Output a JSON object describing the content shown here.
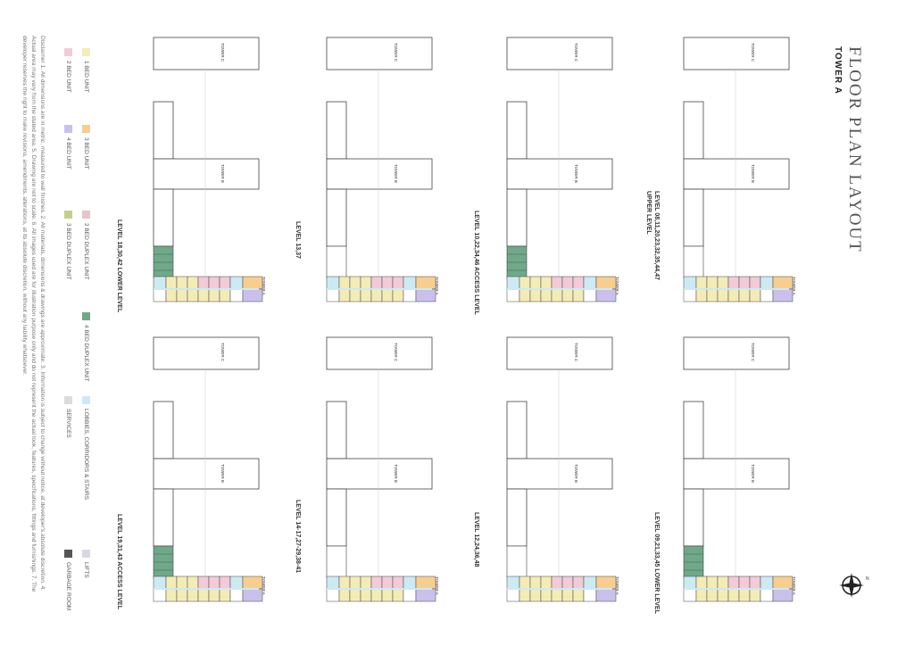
{
  "header": {
    "title": "FLOOR PLAN LAYOUT",
    "subtitle": "TOWER A"
  },
  "towers": {
    "a": "TOWER A",
    "b": "TOWER B",
    "c": "TOWER C"
  },
  "unit_label": "AeT",
  "plans": [
    {
      "level": "LEVEL 08,11,20,23,32,35,44,47 UPPER LEVEL"
    },
    {
      "level": "LEVEL 09,21,33,45 LOWER LEVEL"
    },
    {
      "level": "LEVEL 10,22,34,46 ACCESS LEVEL"
    },
    {
      "level": "LEVEL 12,24,36,48"
    },
    {
      "level": "LEVEL 13,37"
    },
    {
      "level": "LEVEL 14-17,27-29,38-41"
    },
    {
      "level": "LEVEL 18,30,42 LOWER LEVEL"
    },
    {
      "level": "LEVEL 19,31,43 ACCESS LEVEL"
    }
  ],
  "legend": [
    {
      "label": "1 BED UNIT",
      "color": "#f3ecb6"
    },
    {
      "label": "2 BED UNIT",
      "color": "#f2cad8"
    },
    {
      "label": "3 BED UNIT",
      "color": "#f6cf90"
    },
    {
      "label": "4 BED UNIT",
      "color": "#c9c0ec"
    },
    {
      "label": "2 BED DUPLEX UNIT",
      "color": "#e4c5cb"
    },
    {
      "label": "3 BED DUPLEX UNIT",
      "color": "#c3d08c"
    },
    {
      "label": "4 BED DUPLEX UNIT",
      "color": "#6fa98a"
    },
    {
      "label": "LOBBIES, CORRIDORS & STAIRS",
      "color": "#cdeaf3"
    },
    {
      "label": "SERVICES",
      "color": "#dcdcdc"
    },
    {
      "label": "LIFTS",
      "color": "#dad6e8"
    },
    {
      "label": "GARBAGE ROOM",
      "color": "#555555"
    }
  ],
  "disclaimer": "Disclaimer 1. All dimensions are in metric, measured to wall finishes. 2. All materials, dimensions & drawings are approximate. 3. Information is subject to change without notice, at developer's absolute discretion. 4. Actual area may vary from the stated area. 5. Drawing are not to scale. 6. All images used are for illustration purpose only and do not represent the actual look, features, specifications, fittings and furnishings. 7. The developer reserves the right to make revisions, amendments, alterations, at its absolute discretion, without any liability whatsoever.",
  "colors": {
    "one_bed": "#f3ecb6",
    "two_bed": "#f2cad8",
    "three_bed": "#f6cf90",
    "four_bed": "#c9c0ec",
    "duplex4": "#6fa98a",
    "lobby": "#cdeaf3",
    "outline": "#444444"
  }
}
